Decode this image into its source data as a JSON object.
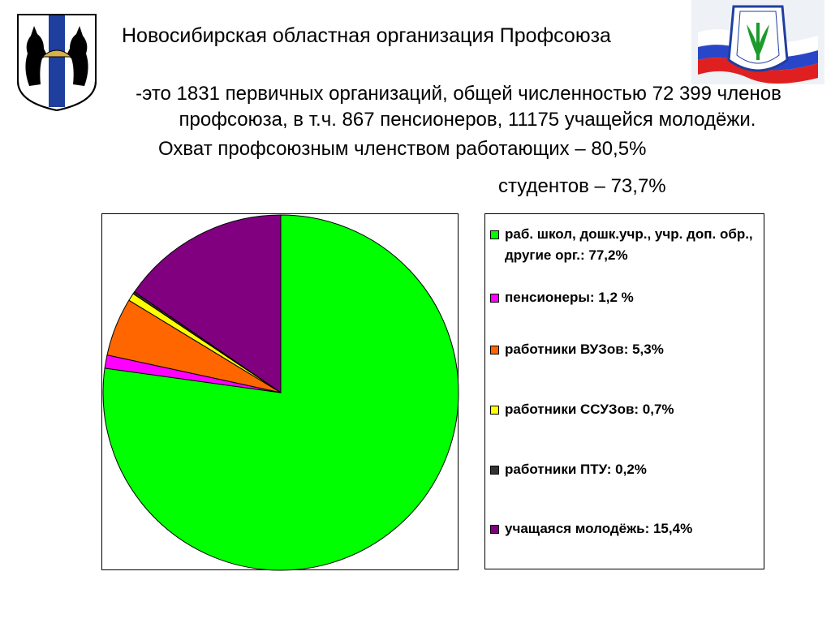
{
  "header": {
    "title": "Новосибирская областная организация Профсоюза"
  },
  "text": {
    "line1": "-это 1831 первичных организаций, общей численностью 72 399 членов",
    "line2": "профсоюза, в т.ч. 867 пенсионеров, 11175 учащейся молодёжи.",
    "line3": "Охват профсоюзным членством работающих – 80,5%",
    "line4": "студентов – 73,7%"
  },
  "colors": {
    "green": "#00ff00",
    "magenta": "#ff00ff",
    "orange": "#ff6600",
    "yellow": "#ffff00",
    "dark": "#333333",
    "purple": "#800080"
  },
  "chart_data": {
    "type": "pie",
    "start_angle_deg": 0,
    "direction": "clockwise",
    "legend_position": "right",
    "series": [
      {
        "name": "раб. школ, дошк.учр., учр. доп. обр., другие орг.",
        "value": 77.2,
        "label": "раб. школ, дошк.учр., учр. доп. обр., другие орг.: 77,2%",
        "color": "#00ff00"
      },
      {
        "name": "пенсионеры",
        "value": 1.2,
        "label": "пенсионеры: 1,2 %",
        "color": "#ff00ff"
      },
      {
        "name": "работники ВУЗов",
        "value": 5.3,
        "label": "работники ВУЗов: 5,3%",
        "color": "#ff6600"
      },
      {
        "name": "работники ССУЗов",
        "value": 0.7,
        "label": "работники ССУЗов: 0,7%",
        "color": "#ffff00"
      },
      {
        "name": "работники ПТУ",
        "value": 0.2,
        "label": "работники ПТУ: 0,2%",
        "color": "#333333"
      },
      {
        "name": "учащаяся молодёжь",
        "value": 15.4,
        "label": "учащаяся молодёжь: 15,4%",
        "color": "#800080"
      }
    ]
  }
}
